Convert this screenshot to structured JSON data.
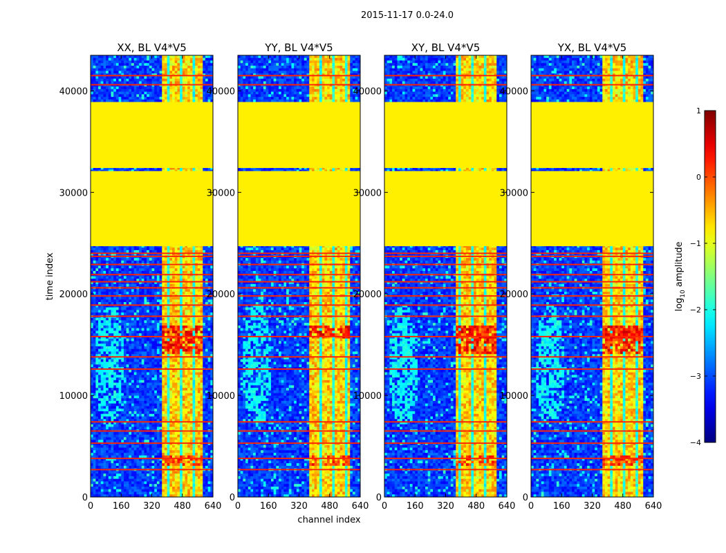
{
  "figure": {
    "suptitle": "2015-11-17 0.0-24.0"
  },
  "chart_data": {
    "type": "heatmap",
    "suptitle": "2015-11-17 0.0-24.0",
    "xlabel": "channel index",
    "ylabel": "time index",
    "xlim": [
      0,
      640
    ],
    "ylim": [
      0,
      43500
    ],
    "xticks": [
      "0",
      "160",
      "320",
      "480",
      "640"
    ],
    "xtick_values": [
      0,
      160,
      320,
      480,
      640
    ],
    "yticks": [
      "0",
      "10000",
      "20000",
      "30000",
      "40000"
    ],
    "ytick_values": [
      0,
      10000,
      20000,
      30000,
      40000
    ],
    "panels": [
      {
        "title": "XX, BL V4*V5",
        "variant": 0
      },
      {
        "title": "YY, BL V4*V5",
        "variant": 1
      },
      {
        "title": "XY, BL V4*V5",
        "variant": 2
      },
      {
        "title": "YX, BL V4*V5",
        "variant": 3
      }
    ],
    "colorbar": {
      "label": "log10 amplitude",
      "label_prefix": "log",
      "label_sub": "10",
      "label_suffix": " amplitude",
      "range": [
        -4,
        1
      ],
      "ticks": [
        "−4",
        "−3",
        "−2",
        "−1",
        "0",
        "1"
      ],
      "tick_values": [
        -4,
        -3,
        -2,
        -1,
        0,
        1
      ],
      "colormap": "jet"
    },
    "flagged_blocks": [
      {
        "t_start": 24700,
        "t_end": 32100,
        "log_amplitude": -0.8
      },
      {
        "t_start": 32400,
        "t_end": 38900,
        "log_amplitude": -0.8
      }
    ],
    "bright_channel_band": [
      380,
      590
    ],
    "flagged_rows": [
      2700,
      3800,
      5300,
      6500,
      7400,
      12600,
      13800,
      15800,
      17800,
      18900,
      19800,
      20600,
      21200,
      21900,
      22900,
      23700,
      24000,
      40600,
      41500
    ]
  }
}
